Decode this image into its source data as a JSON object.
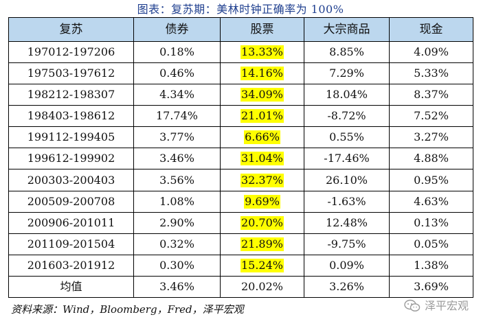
{
  "title": "图表：复苏期：美林时钟正确率为 100%",
  "colors": {
    "header_bg": "#bcd7ee",
    "highlight": "#ffff00",
    "title_color": "#1f3f8f"
  },
  "table": {
    "headers": [
      "复苏",
      "债券",
      "股票",
      "大宗商品",
      "现金"
    ],
    "rows": [
      [
        "197012-197206",
        "0.18%",
        "13.33%",
        "8.85%",
        "4.09%"
      ],
      [
        "197503-197612",
        "0.46%",
        "14.16%",
        "7.29%",
        "5.33%"
      ],
      [
        "198212-198307",
        "4.34%",
        "34.09%",
        "18.04%",
        "8.37%"
      ],
      [
        "198403-198612",
        "17.74%",
        "21.01%",
        "-8.72%",
        "7.52%"
      ],
      [
        "199112-199405",
        "3.77%",
        "6.66%",
        "0.55%",
        "3.27%"
      ],
      [
        "199612-199902",
        "3.46%",
        "31.04%",
        "-17.46%",
        "4.88%"
      ],
      [
        "200303-200403",
        "3.56%",
        "32.37%",
        "26.10%",
        "0.95%"
      ],
      [
        "200509-200708",
        "1.08%",
        "9.69%",
        "-1.63%",
        "4.63%"
      ],
      [
        "200906-201011",
        "2.90%",
        "20.70%",
        "12.48%",
        "0.13%"
      ],
      [
        "201109-201504",
        "0.32%",
        "21.89%",
        "-9.75%",
        "0.05%"
      ],
      [
        "201603-201912",
        "0.30%",
        "15.24%",
        "0.09%",
        "1.38%"
      ]
    ],
    "average": [
      "均值",
      "3.46%",
      "20.02%",
      "3.26%",
      "3.69%"
    ]
  },
  "footer": "资料来源：Wind，Bloomberg，Fred，泽平宏观",
  "watermark": {
    "icon": "wechat-icon",
    "text": "泽平宏观"
  }
}
